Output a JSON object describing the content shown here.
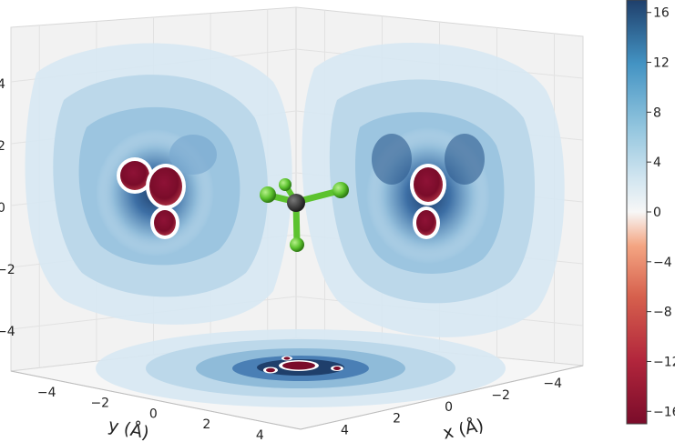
{
  "chart_data": {
    "type": "heatmap",
    "title": "",
    "projection": "3d",
    "xlabel": "x (Å)",
    "ylabel": "y (Å)",
    "zlabel": "",
    "x_ticks": [
      "−4",
      "−2",
      "0",
      "2",
      "4"
    ],
    "y_ticks": [
      "−4",
      "−2",
      "0",
      "2",
      "4"
    ],
    "z_ticks": [
      "−4",
      "−2",
      "0",
      "2",
      "4"
    ],
    "xlim": [
      -5,
      5
    ],
    "ylim": [
      -5,
      5
    ],
    "zlim": [
      -5,
      5
    ],
    "colormap": "RdBu (diverging, red negative, blue positive)",
    "colorbar": {
      "ticks": [
        "−16",
        "−12",
        "−8",
        "−4",
        "0",
        "4",
        "8",
        "12",
        "16"
      ],
      "range": [
        -17,
        17
      ],
      "levels": 34
    },
    "colors": {
      "negative_extreme": "#7a0c2a",
      "negative_mid": "#d6604d",
      "zero": "#f7f7f7",
      "positive_mid": "#92c5de",
      "positive_extreme": "#1f3f6b",
      "atom_carbon": "#3a3a3a",
      "atom_fluorine": "#6ccf3a"
    },
    "projections": [
      "xz-plane (back left wall)",
      "yz-plane (back right wall)",
      "xy-plane (floor)"
    ],
    "molecule": {
      "center_atom": "C",
      "ligands": 4,
      "ligand_atom": "F"
    }
  }
}
